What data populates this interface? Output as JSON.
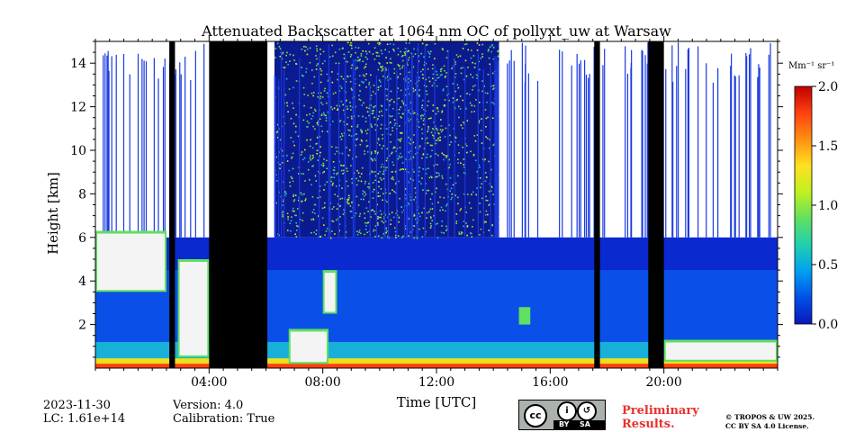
{
  "chart_data": {
    "type": "heatmap",
    "title": "Attenuated Backscatter at 1064 nm OC of pollyxt_uw at Warsaw",
    "xlabel": "Time [UTC]",
    "ylabel": "Height [km]",
    "x_range_hours": [
      0,
      24
    ],
    "x_ticks": [
      4,
      8,
      12,
      16,
      20
    ],
    "x_tick_labels": [
      "04:00",
      "08:00",
      "12:00",
      "16:00",
      "20:00"
    ],
    "ylim": [
      0,
      15
    ],
    "y_ticks": [
      2,
      4,
      6,
      8,
      10,
      12,
      14
    ],
    "y_tick_labels": [
      "2",
      "4",
      "6",
      "8",
      "10",
      "12",
      "14"
    ],
    "colorbar": {
      "unit": "Mm⁻¹ sr⁻¹",
      "range": [
        0.0,
        2.0
      ],
      "ticks": [
        0.0,
        0.5,
        1.0,
        1.5,
        2.0
      ],
      "tick_labels": [
        "0.0",
        "0.5",
        "1.0",
        "1.5",
        "2.0"
      ],
      "colormap": [
        "#0a18b8",
        "#0050e8",
        "#00a0f0",
        "#20d0b0",
        "#60e060",
        "#c0f020",
        "#ffe020",
        "#ff9010",
        "#ff4010",
        "#c00000"
      ]
    },
    "no_data_intervals_hours": [
      [
        2.6,
        2.8
      ],
      [
        4.0,
        6.05
      ],
      [
        17.55,
        17.75
      ],
      [
        19.45,
        20.0
      ]
    ],
    "high_altitude_data_hours": [
      6.3,
      14.2
    ],
    "data_ceiling_km": 6.0,
    "clouds": [
      {
        "start_h": 0.0,
        "end_h": 2.5,
        "base_km": 3.5,
        "top_km": 6.3,
        "level": "saturated"
      },
      {
        "start_h": 2.9,
        "end_h": 4.0,
        "base_km": 0.5,
        "top_km": 5.0,
        "level": "saturated"
      },
      {
        "start_h": 8.0,
        "end_h": 8.5,
        "base_km": 2.5,
        "top_km": 4.5,
        "level": "saturated"
      },
      {
        "start_h": 6.8,
        "end_h": 8.2,
        "base_km": 0.2,
        "top_km": 1.8,
        "level": "saturated"
      },
      {
        "start_h": 14.9,
        "end_h": 15.3,
        "base_km": 2.0,
        "top_km": 2.8,
        "level": "medium"
      },
      {
        "start_h": 20.0,
        "end_h": 24.0,
        "base_km": 0.3,
        "top_km": 1.3,
        "level": "saturated"
      }
    ],
    "boundary_layer_top_km": 1.2,
    "aerosol_layer_top_km": 4.5
  },
  "meta": {
    "date": "2023-11-30",
    "lc": "LC: 1.61e+14",
    "version": "Version: 4.0",
    "calibration": "Calibration: True"
  },
  "footer": {
    "preliminary_line1": "Preliminary",
    "preliminary_line2": "Results.",
    "copyright_line1": "© TROPOS & UW 2025.",
    "copyright_line2": "CC BY SA 4.0 License.",
    "cc_by": "BY",
    "cc_sa": "SA"
  }
}
